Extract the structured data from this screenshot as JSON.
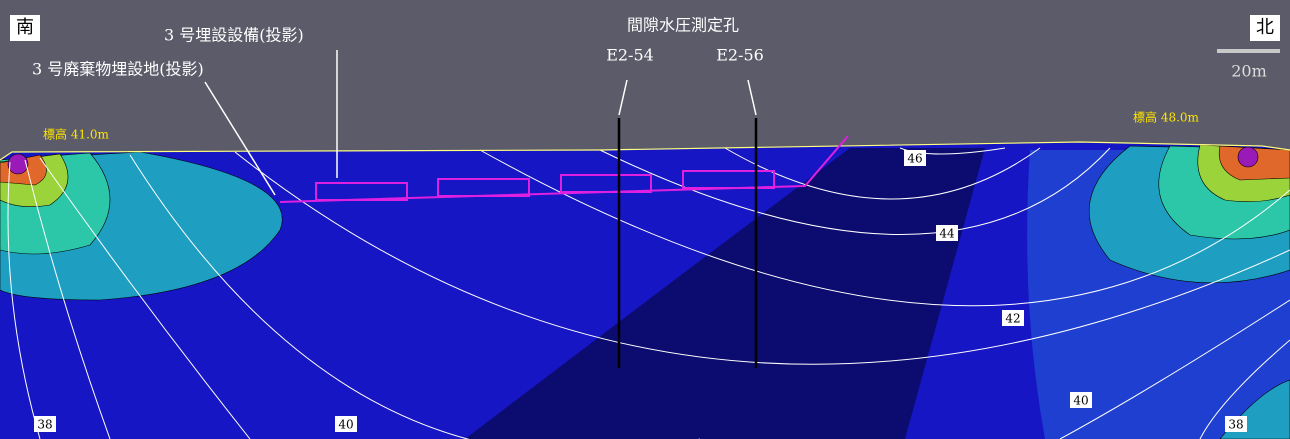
{
  "labels": {
    "south": "南",
    "north": "北",
    "facility": "3 号埋設設備(投影)",
    "site": "3 号廃棄物埋設地(投影)",
    "borehole_title": "間隙水圧測定孔",
    "boreholes": [
      "E2-54",
      "E2-56"
    ],
    "scale": "20m",
    "elevation_south": "標高 41.0m",
    "elevation_north": "標高 48.0m"
  },
  "contour_labels": [
    46,
    44,
    42,
    40,
    40,
    38,
    38
  ]
}
